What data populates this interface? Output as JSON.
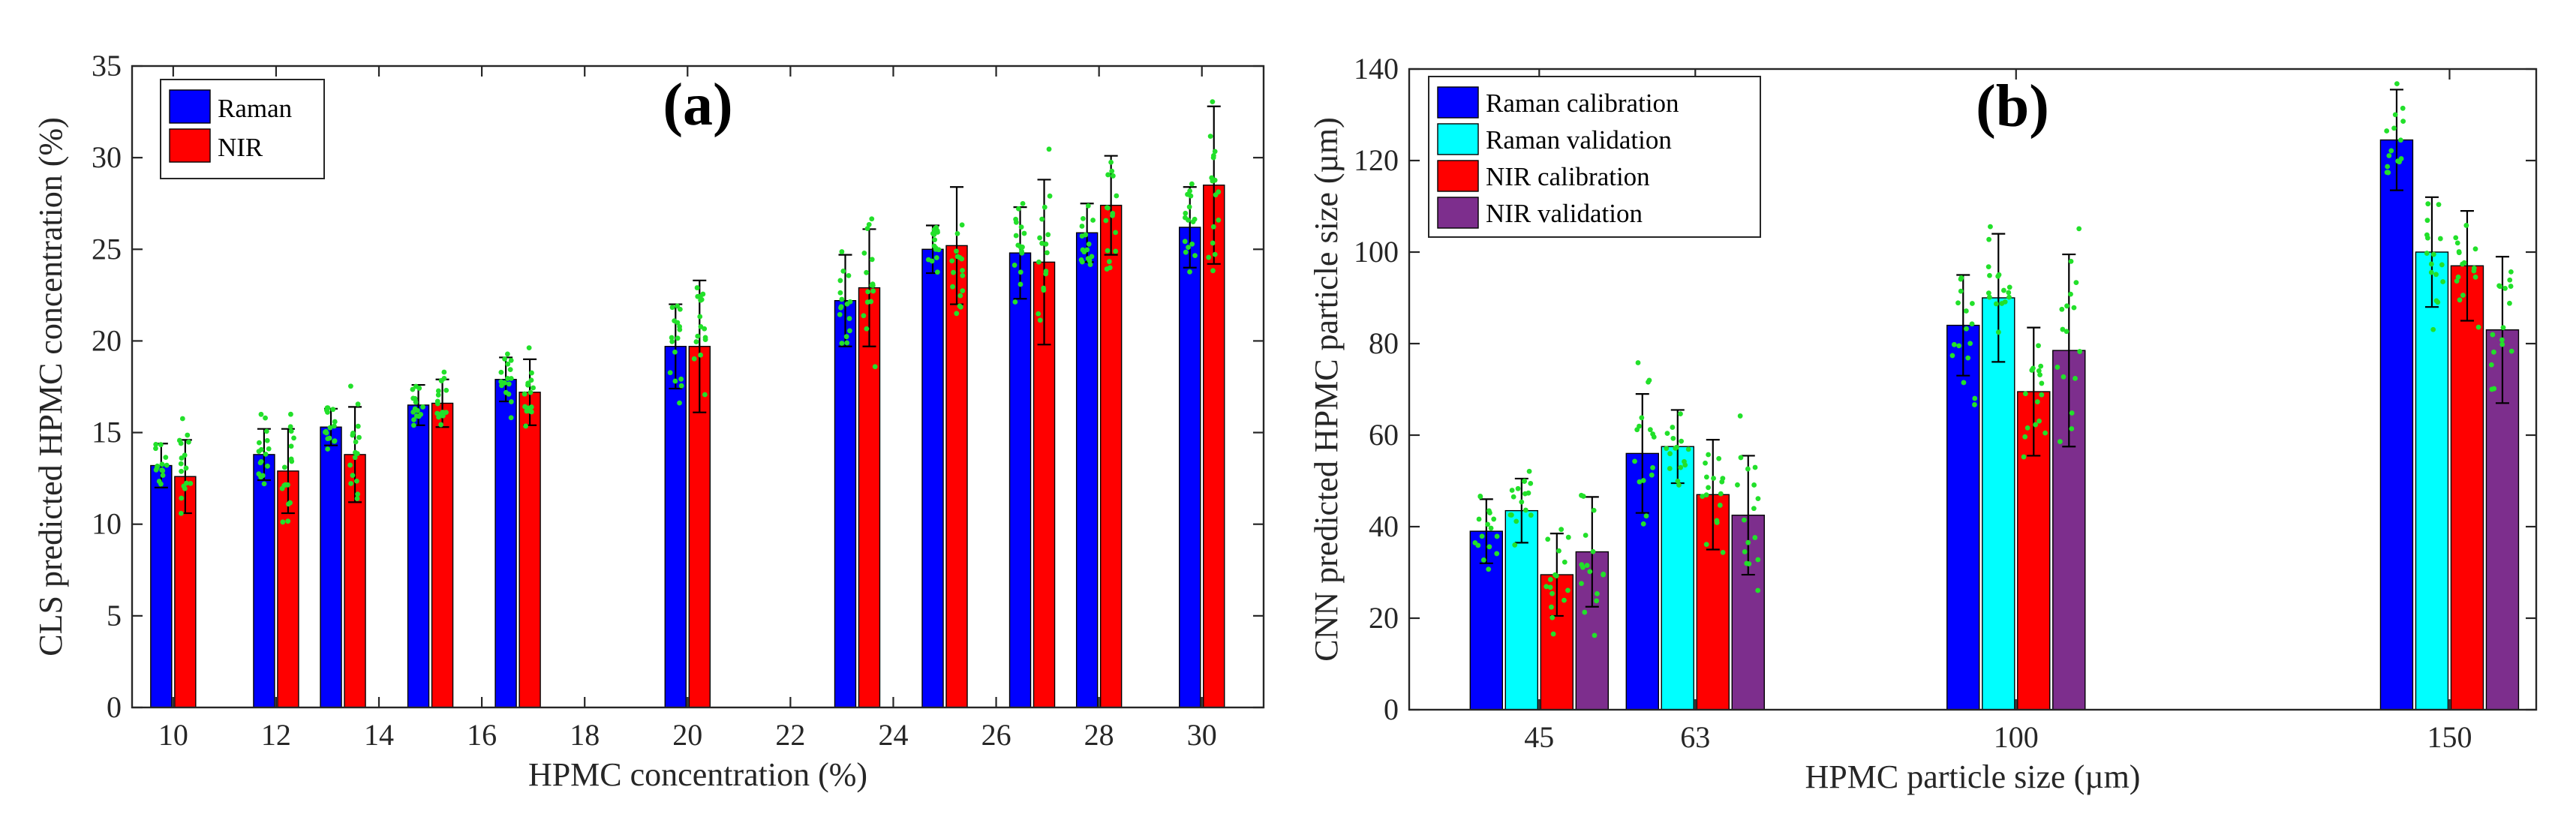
{
  "chart_data": [
    {
      "type": "bar",
      "panel_label": "(a)",
      "xlabel": "HPMC concentration (%)",
      "ylabel": "CLS predicted HPMC concentration (%)",
      "xlim": [
        9.2,
        31.2
      ],
      "ylim": [
        0,
        35
      ],
      "xticks": [
        10,
        12,
        14,
        16,
        18,
        20,
        22,
        24,
        26,
        28,
        30
      ],
      "yticks": [
        0,
        5,
        10,
        15,
        20,
        25,
        30,
        35
      ],
      "legend": {
        "position": "top-left"
      },
      "grid": false,
      "x": [
        10,
        12,
        13.3,
        15,
        16.7,
        20,
        23.3,
        25,
        26.7,
        28,
        30
      ],
      "series": [
        {
          "name": "Raman",
          "color": "#0000ff",
          "values": [
            13.2,
            13.8,
            15.3,
            16.5,
            17.9,
            19.7,
            22.2,
            25.0,
            24.8,
            25.9,
            26.2
          ],
          "errors": [
            1.2,
            1.4,
            1.0,
            1.1,
            1.2,
            2.3,
            2.5,
            1.3,
            2.5,
            1.6,
            2.2
          ]
        },
        {
          "name": "NIR",
          "color": "#ff0000",
          "values": [
            12.6,
            12.9,
            13.8,
            16.6,
            17.2,
            19.7,
            22.9,
            25.2,
            24.3,
            27.4,
            28.5
          ],
          "errors": [
            2.0,
            2.3,
            2.6,
            1.3,
            1.8,
            3.6,
            3.2,
            3.2,
            4.5,
            2.7,
            4.3
          ]
        }
      ]
    },
    {
      "type": "bar",
      "panel_label": "(b)",
      "xlabel": "HPMC particle size (µm)",
      "ylabel": "CNN predicted HPMC particle size (µm)",
      "xlim": [
        30,
        160
      ],
      "ylim": [
        0,
        140
      ],
      "xticks": [
        45,
        63,
        100,
        150
      ],
      "yticks": [
        0,
        20,
        40,
        60,
        80,
        100,
        120,
        140
      ],
      "legend": {
        "position": "top-left"
      },
      "grid": false,
      "x": [
        45,
        63,
        100,
        150
      ],
      "series": [
        {
          "name": "Raman calibration",
          "color": "#0000ff",
          "values": [
            39.0,
            56.0,
            84.0,
            124.5
          ],
          "errors": [
            7,
            13,
            11,
            11
          ]
        },
        {
          "name": "Raman validation",
          "color": "#00ffff",
          "values": [
            43.5,
            57.5,
            90.0,
            100.0
          ],
          "errors": [
            7,
            8,
            14,
            12
          ]
        },
        {
          "name": "NIR calibration",
          "color": "#ff0000",
          "values": [
            29.5,
            47.0,
            69.5,
            97.0
          ],
          "errors": [
            9,
            12,
            14,
            12
          ]
        },
        {
          "name": "NIR validation",
          "color": "#7d2e8d",
          "values": [
            34.5,
            42.5,
            78.5,
            83.0
          ],
          "errors": [
            12,
            13,
            21,
            16
          ]
        }
      ]
    }
  ]
}
